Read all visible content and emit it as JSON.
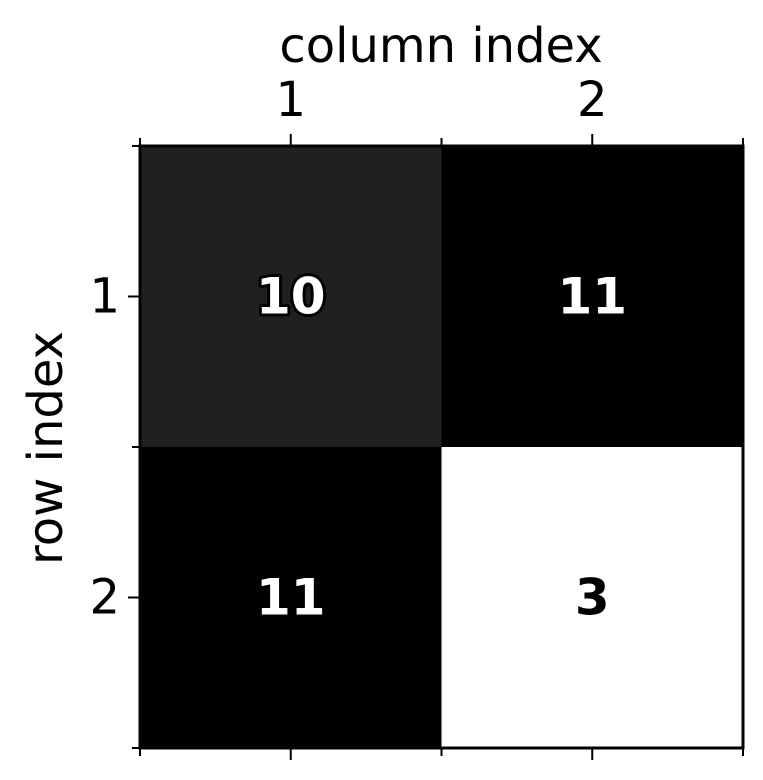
{
  "chart_data": {
    "type": "heatmap",
    "xlabel": "column index",
    "ylabel": "row index",
    "x_categories": [
      "1",
      "2"
    ],
    "y_categories": [
      "1",
      "2"
    ],
    "values": [
      [
        10,
        11
      ],
      [
        11,
        3
      ]
    ],
    "cell_labels": [
      [
        "10",
        "11"
      ],
      [
        "11",
        "3"
      ]
    ],
    "colormap": "grayscale",
    "color_low": "#ffffff",
    "color_high": "#000000",
    "x_axis_position": "top",
    "grid": false,
    "legend": "none"
  }
}
